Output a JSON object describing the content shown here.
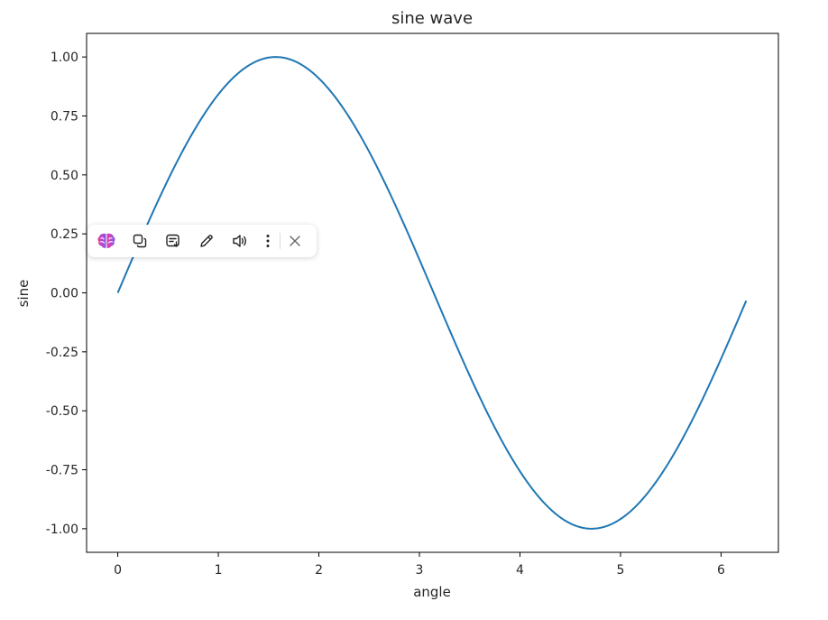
{
  "chart_data": {
    "type": "line",
    "title": "sine wave",
    "xlabel": "angle",
    "ylabel": "sine",
    "xlim": [
      -0.31,
      6.57
    ],
    "ylim": [
      -1.1,
      1.1
    ],
    "x_ticks": [
      "0",
      "1",
      "2",
      "3",
      "4",
      "5",
      "6"
    ],
    "y_ticks": [
      "1.00",
      "0.75",
      "0.50",
      "0.25",
      "0.00",
      "-0.25",
      "-0.50",
      "-0.75",
      "-1.00"
    ],
    "series": [
      {
        "function": "sin",
        "x_start": 0,
        "x_end": 6.25,
        "color": "#1f77b4"
      }
    ],
    "grid": false
  },
  "toolbar": {
    "icons": [
      "brain-icon",
      "copy-icon",
      "summarize-icon",
      "pen-icon",
      "speaker-icon",
      "more-vertical-icon",
      "close-icon"
    ],
    "accent_colors": [
      "#f0399c",
      "#7b5cf5"
    ]
  }
}
